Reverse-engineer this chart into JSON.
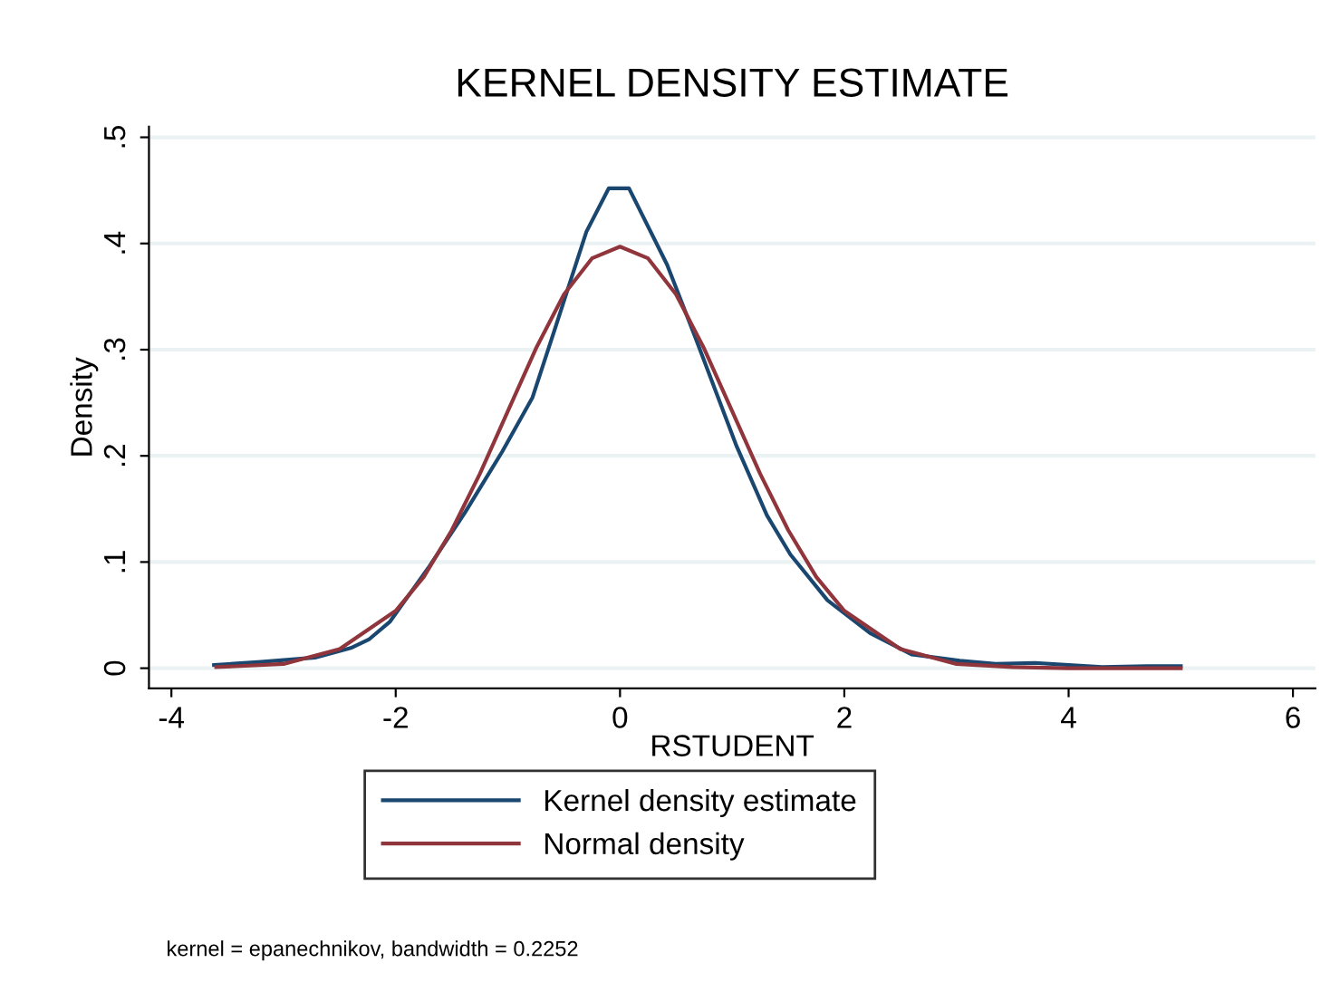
{
  "chart_data": {
    "type": "line",
    "title": "KERNEL DENSITY ESTIMATE",
    "xlabel": "RSTUDENT",
    "ylabel": "Density",
    "series": [
      {
        "name": "Kernel density estimate",
        "color": "#1a476f",
        "x": [
          -3.62,
          -3.2,
          -2.72,
          -2.4,
          -2.24,
          -2.05,
          -1.7,
          -1.38,
          -1.05,
          -0.78,
          -0.57,
          -0.3,
          -0.1,
          0.08,
          0.42,
          0.67,
          1.04,
          1.31,
          1.52,
          1.85,
          2.23,
          2.6,
          3.03,
          3.35,
          3.7,
          4.3,
          4.7,
          5.0
        ],
        "values": [
          0.003,
          0.006,
          0.01,
          0.019,
          0.027,
          0.044,
          0.096,
          0.147,
          0.204,
          0.255,
          0.323,
          0.411,
          0.452,
          0.452,
          0.38,
          0.312,
          0.209,
          0.144,
          0.107,
          0.064,
          0.033,
          0.013,
          0.007,
          0.004,
          0.005,
          0.001,
          0.002,
          0.002
        ]
      },
      {
        "name": "Normal density",
        "color": "#90353b",
        "x": [
          -3.6,
          -3.0,
          -2.5,
          -2.0,
          -1.75,
          -1.5,
          -1.25,
          -1.0,
          -0.75,
          -0.5,
          -0.25,
          0.0,
          0.25,
          0.5,
          0.75,
          1.0,
          1.25,
          1.5,
          1.75,
          2.0,
          2.5,
          3.0,
          3.5,
          4.0,
          5.0
        ],
        "values": [
          0.001,
          0.004,
          0.018,
          0.054,
          0.086,
          0.13,
          0.183,
          0.242,
          0.301,
          0.352,
          0.386,
          0.397,
          0.386,
          0.352,
          0.301,
          0.242,
          0.183,
          0.13,
          0.086,
          0.054,
          0.018,
          0.004,
          0.001,
          0.0,
          0.0
        ]
      }
    ],
    "xlim": [
      -4.2,
      6.2
    ],
    "xticks": [
      -4,
      -2,
      0,
      2,
      4,
      6
    ],
    "ylim": [
      -0.019,
      0.51
    ],
    "yticks": [
      {
        "value": 0,
        "label": "0"
      },
      {
        "value": 0.1,
        "label": ".1"
      },
      {
        "value": 0.2,
        "label": ".2"
      },
      {
        "value": 0.3,
        "label": ".3"
      },
      {
        "value": 0.4,
        "label": ".4"
      },
      {
        "value": 0.5,
        "label": ".5"
      }
    ],
    "grid": "y",
    "legend": "bottom",
    "line_style": "solid",
    "marker": "none",
    "annotations": [
      "kernel = epanechnikov, bandwidth = 0.2252"
    ]
  }
}
